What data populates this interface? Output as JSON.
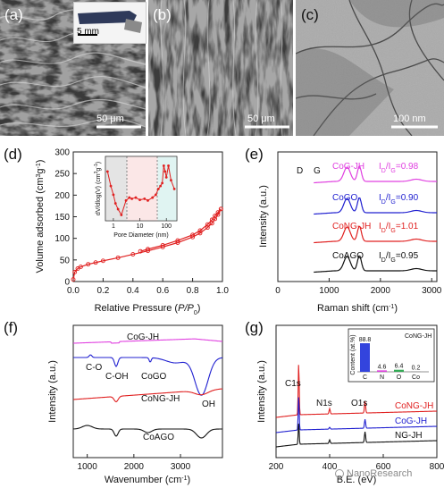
{
  "top_panels": {
    "a": {
      "label": "(a)",
      "scale": "50 μm",
      "inset_scale": "5 mm"
    },
    "b": {
      "label": "(b)",
      "scale": "50 μm"
    },
    "c": {
      "label": "(c)",
      "scale": "100 nm"
    }
  },
  "watermark": "NanoResearch",
  "chart_data": [
    {
      "id": "d",
      "panel_label": "(d)",
      "type": "line",
      "xlabel": "Relative Pressure (P/P0)",
      "ylabel": "Volume adsorbed (cm3 g-1)",
      "xlim": [
        0,
        1.0
      ],
      "ylim": [
        0,
        300
      ],
      "xticks": [
        "0.0",
        "0.2",
        "0.4",
        "0.6",
        "0.8",
        "1.0"
      ],
      "yticks": [
        "0",
        "50",
        "100",
        "150",
        "200",
        "250",
        "300"
      ],
      "color": "#e02020",
      "series": [
        {
          "x": [
            0.0,
            0.01,
            0.03,
            0.05,
            0.1,
            0.15,
            0.2,
            0.3,
            0.4,
            0.5,
            0.6,
            0.7,
            0.8,
            0.85,
            0.9,
            0.93,
            0.95,
            0.97,
            0.99
          ],
          "y": [
            5,
            22,
            30,
            34,
            40,
            44,
            48,
            55,
            63,
            71,
            80,
            90,
            103,
            112,
            125,
            135,
            145,
            155,
            168
          ]
        },
        {
          "x": [
            0.99,
            0.97,
            0.95,
            0.93,
            0.9,
            0.85,
            0.8,
            0.7,
            0.6,
            0.5,
            0.45
          ],
          "y": [
            168,
            160,
            152,
            143,
            132,
            118,
            108,
            95,
            84,
            75,
            70
          ]
        }
      ],
      "inset": {
        "xlabel": "Pore Diameter (nm)",
        "ylabel": "dV/dlog(V) (cm3 g-1)",
        "xticks": [
          "1",
          "10",
          "100"
        ],
        "x": [
          0.6,
          0.8,
          1.0,
          1.2,
          1.5,
          2,
          3,
          4,
          5,
          7,
          10,
          15,
          20,
          30,
          40,
          50,
          60,
          70,
          80,
          90,
          100,
          120,
          150,
          200
        ],
        "y": [
          0.85,
          0.6,
          0.45,
          0.3,
          0.2,
          0.1,
          0.35,
          0.4,
          0.38,
          0.4,
          0.36,
          0.38,
          0.35,
          0.4,
          0.45,
          0.55,
          0.6,
          0.65,
          0.95,
          0.85,
          0.75,
          0.95,
          0.7,
          0.55
        ]
      }
    },
    {
      "id": "e",
      "panel_label": "(e)",
      "type": "line",
      "xlabel": "Raman shift (cm-1)",
      "ylabel": "Intensity (a.u.)",
      "xlim": [
        0,
        3100
      ],
      "xticks": [
        "0",
        "1000",
        "2000",
        "3000"
      ],
      "peak_labels": [
        "D",
        "G"
      ],
      "series": [
        {
          "name": "CoG-JH",
          "color": "#e040e0",
          "ratio": "ID/IG=0.98"
        },
        {
          "name": "CoGO",
          "color": "#2020d0",
          "ratio": "ID/IG=0.90"
        },
        {
          "name": "CoNG-JH",
          "color": "#e02020",
          "ratio": "ID/IG=1.01"
        },
        {
          "name": "CoAGO",
          "color": "#111111",
          "ratio": "ID/IG=0.95"
        }
      ]
    },
    {
      "id": "f",
      "panel_label": "(f)",
      "type": "line",
      "xlabel": "Wavenumber (cm-1)",
      "ylabel": "Intensity (a.u.)",
      "xlim": [
        700,
        3900
      ],
      "xticks": [
        "1000",
        "2000",
        "3000"
      ],
      "annotations": [
        "C-O",
        "C-OH",
        "OH"
      ],
      "series": [
        {
          "name": "CoG-JH",
          "color": "#e040e0"
        },
        {
          "name": "CoGO",
          "color": "#2020d0"
        },
        {
          "name": "CoNG-JH",
          "color": "#e02020"
        },
        {
          "name": "CoAGO",
          "color": "#111111"
        }
      ]
    },
    {
      "id": "g",
      "panel_label": "(g)",
      "type": "line",
      "xlabel": "B.E. (eV)",
      "ylabel": "Intensity (a.u.)",
      "xlim": [
        200,
        800
      ],
      "xticks": [
        "200",
        "400",
        "600",
        "800"
      ],
      "peak_labels": [
        "C1s",
        "N1s",
        "O1s"
      ],
      "series": [
        {
          "name": "CoNG-JH",
          "color": "#e02020"
        },
        {
          "name": "CoG-JH",
          "color": "#2020d0"
        },
        {
          "name": "NG-JH",
          "color": "#111111"
        }
      ],
      "inset": {
        "type": "bar",
        "title": "CoNG-JH",
        "ylabel": "Content (at.%)",
        "categories": [
          "C",
          "N",
          "O",
          "Co"
        ],
        "values": [
          88.8,
          4.6,
          6.4,
          0.2
        ],
        "value_labels": [
          "88.8",
          "4.6",
          "6.4",
          "0.2"
        ],
        "colors": [
          "#3344dd",
          "#dd44dd",
          "#33aa55",
          "#999999"
        ]
      }
    }
  ]
}
